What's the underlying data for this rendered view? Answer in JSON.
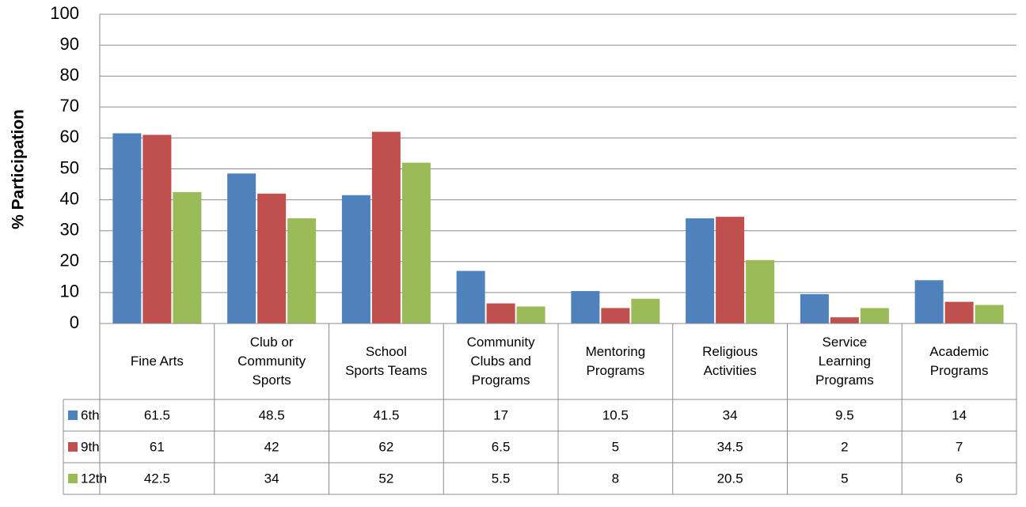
{
  "chart_data": {
    "type": "bar",
    "ylabel": "% Participation",
    "categories": [
      "Fine Arts",
      "Club or Community Sports",
      "School Sports Teams",
      "Community Clubs and Programs",
      "Mentoring Programs",
      "Religious Activities",
      "Service Learning Programs",
      "Academic Programs"
    ],
    "series": [
      {
        "name": "6th",
        "color": "#4f81bd",
        "values": [
          61.5,
          48.5,
          41.5,
          17,
          10.5,
          34,
          9.5,
          14
        ]
      },
      {
        "name": "9th",
        "color": "#c0504d",
        "values": [
          61,
          42,
          62,
          6.5,
          5,
          34.5,
          2,
          7
        ]
      },
      {
        "name": "12th",
        "color": "#9bbb59",
        "values": [
          42.5,
          34,
          52,
          5.5,
          8,
          20.5,
          5,
          6
        ]
      }
    ],
    "ylim": [
      0,
      100
    ],
    "yticks": [
      0,
      10,
      20,
      30,
      40,
      50,
      60,
      70,
      80,
      90,
      100
    ],
    "grid": true
  }
}
